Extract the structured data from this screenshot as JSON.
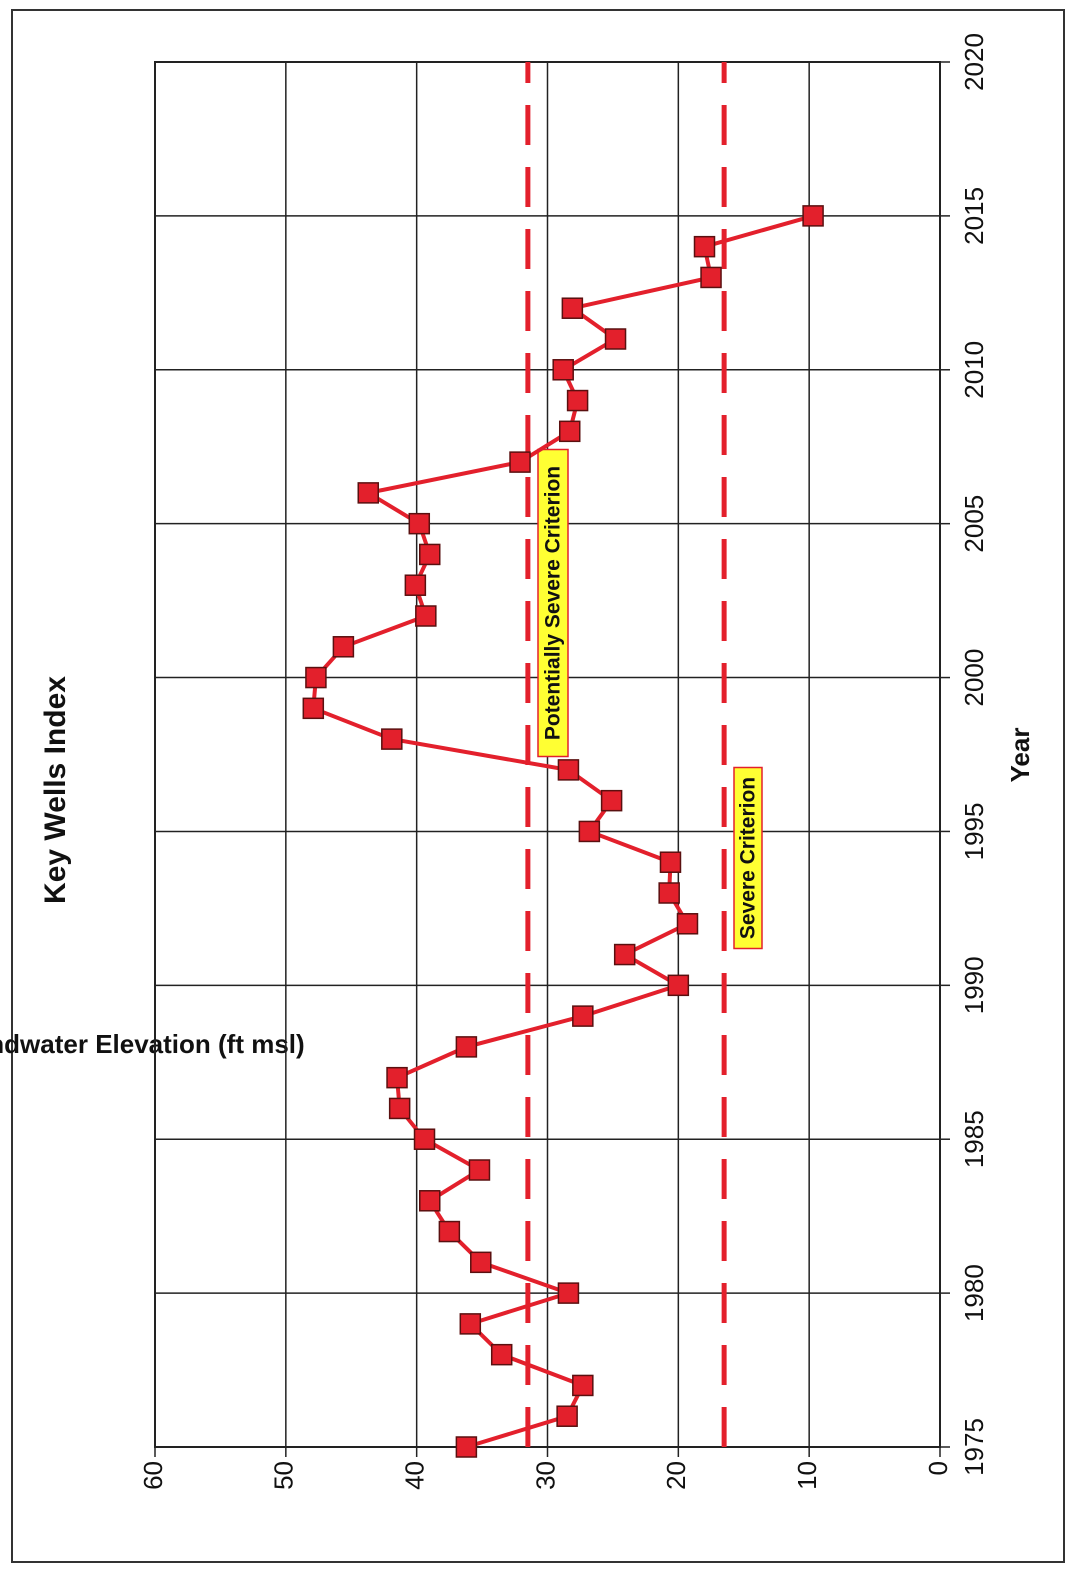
{
  "chart_data": {
    "type": "line",
    "title": "Key Wells Index",
    "x_label": "Year",
    "y_label": "Average Groundwater Elevation (ft msl)",
    "x": [
      1975,
      1976,
      1977,
      1978,
      1979,
      1980,
      1981,
      1982,
      1983,
      1984,
      1985,
      1986,
      1987,
      1988,
      1989,
      1990,
      1991,
      1992,
      1993,
      1994,
      1995,
      1996,
      1997,
      1998,
      1999,
      2000,
      2001,
      2002,
      2003,
      2004,
      2005,
      2006,
      2007,
      2008,
      2009,
      2010,
      2011,
      2012,
      2013,
      2014,
      2015
    ],
    "series": [
      {
        "color": "#e3202c",
        "values": [
          36.2,
          28.5,
          27.3,
          33.5,
          35.9,
          28.4,
          35.1,
          37.5,
          39.0,
          35.2,
          39.4,
          41.3,
          41.5,
          36.2,
          27.3,
          20.0,
          24.1,
          19.3,
          20.7,
          20.6,
          26.8,
          25.1,
          28.4,
          41.9,
          47.9,
          47.7,
          45.6,
          39.3,
          40.1,
          39.0,
          39.8,
          43.7,
          32.1,
          28.3,
          27.7,
          28.8,
          24.8,
          28.1,
          17.5,
          18.0,
          9.7
        ]
      }
    ],
    "reference_lines": [
      {
        "label": "Potentially Severe Criterion",
        "value": 31.5,
        "color": "#e3202c"
      },
      {
        "label": "Severe Criterion",
        "value": 16.5,
        "color": "#e3202c"
      }
    ],
    "xlim": [
      1975,
      2020
    ],
    "xticks": [
      1975,
      1980,
      1985,
      1990,
      1995,
      2000,
      2005,
      2010,
      2015,
      2020
    ],
    "ylim": [
      0,
      60
    ],
    "yticks": [
      0,
      10,
      20,
      30,
      40,
      50,
      60
    ],
    "grid": true
  }
}
